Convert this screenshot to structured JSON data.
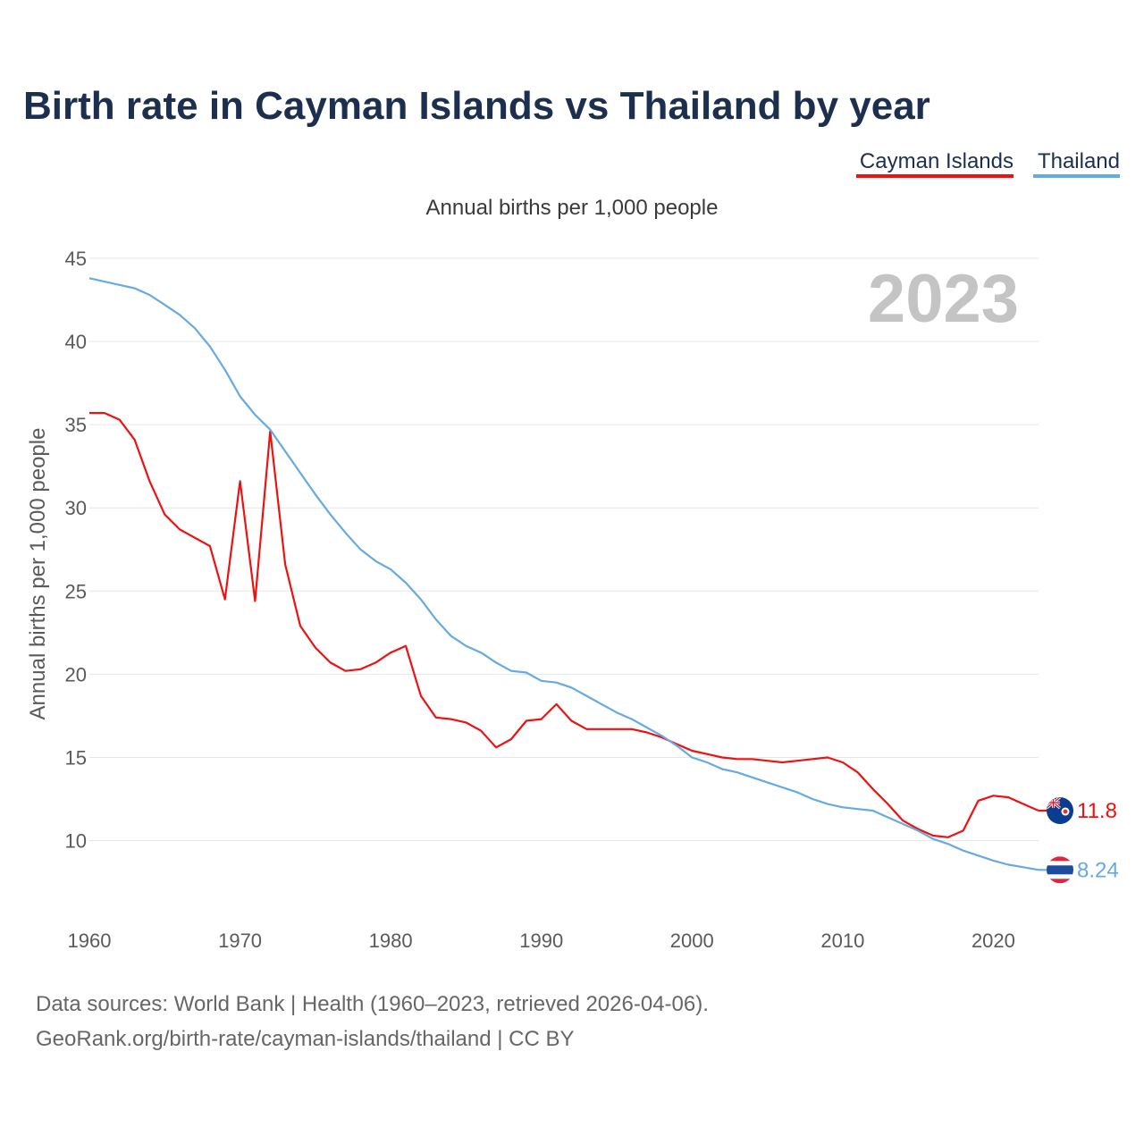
{
  "chart_data": {
    "type": "line",
    "title": "Birth rate in Cayman Islands vs Thailand by year",
    "subtitle": "Annual births per 1,000 people",
    "ylabel": "Annual births per 1,000 people",
    "xlabel": "",
    "current_year": "2023",
    "xlim": [
      1960,
      2023
    ],
    "ylim": [
      6,
      45
    ],
    "x_ticks": [
      1960,
      1970,
      1980,
      1990,
      2000,
      2010,
      2020
    ],
    "y_ticks": [
      10,
      15,
      20,
      25,
      30,
      35,
      40,
      45
    ],
    "legend_position": "top-right",
    "grid": true,
    "x": [
      1960,
      1961,
      1962,
      1963,
      1964,
      1965,
      1966,
      1967,
      1968,
      1969,
      1970,
      1971,
      1972,
      1973,
      1974,
      1975,
      1976,
      1977,
      1978,
      1979,
      1980,
      1981,
      1982,
      1983,
      1984,
      1985,
      1986,
      1987,
      1988,
      1989,
      1990,
      1991,
      1992,
      1993,
      1994,
      1995,
      1996,
      1997,
      1998,
      1999,
      2000,
      2001,
      2002,
      2003,
      2004,
      2005,
      2006,
      2007,
      2008,
      2009,
      2010,
      2011,
      2012,
      2013,
      2014,
      2015,
      2016,
      2017,
      2018,
      2019,
      2020,
      2021,
      2022,
      2023
    ],
    "series": [
      {
        "name": "Cayman Islands",
        "color": "#ee1111",
        "end_label": "11.8",
        "values": [
          35.7,
          35.7,
          35.3,
          34.1,
          31.6,
          29.6,
          28.7,
          28.2,
          27.7,
          24.5,
          31.6,
          24.4,
          34.6,
          26.6,
          22.9,
          21.6,
          20.7,
          20.2,
          20.3,
          20.7,
          21.3,
          21.7,
          18.7,
          17.4,
          17.3,
          17.1,
          16.6,
          15.6,
          16.1,
          17.2,
          17.3,
          18.2,
          17.2,
          16.7,
          16.7,
          16.7,
          16.7,
          16.5,
          16.2,
          15.8,
          15.4,
          15.2,
          15.0,
          14.9,
          14.9,
          14.8,
          14.7,
          14.8,
          14.9,
          15.0,
          14.7,
          14.1,
          13.1,
          12.2,
          11.2,
          10.7,
          10.3,
          10.2,
          10.6,
          12.4,
          12.7,
          12.6,
          12.2,
          11.8
        ]
      },
      {
        "name": "Thailand",
        "color": "#66aae2",
        "end_label": "8.24",
        "values": [
          43.8,
          43.6,
          43.4,
          43.2,
          42.8,
          42.2,
          41.6,
          40.8,
          39.7,
          38.3,
          36.7,
          35.6,
          34.7,
          33.4,
          32.1,
          30.8,
          29.6,
          28.5,
          27.5,
          26.8,
          26.3,
          25.5,
          24.5,
          23.3,
          22.3,
          21.7,
          21.3,
          20.7,
          20.2,
          20.1,
          19.6,
          19.5,
          19.2,
          18.7,
          18.2,
          17.7,
          17.3,
          16.8,
          16.3,
          15.7,
          15.0,
          14.7,
          14.3,
          14.1,
          13.8,
          13.5,
          13.2,
          12.9,
          12.5,
          12.2,
          12.0,
          11.9,
          11.8,
          11.4,
          11.0,
          10.6,
          10.1,
          9.8,
          9.4,
          9.1,
          8.8,
          8.55,
          8.4,
          8.24
        ]
      }
    ]
  },
  "source": {
    "line1": "Data sources: World Bank | Health (1960–2023, retrieved 2026-04-06).",
    "line2": "GeoRank.org/birth-rate/cayman-islands/thailand | CC BY"
  }
}
